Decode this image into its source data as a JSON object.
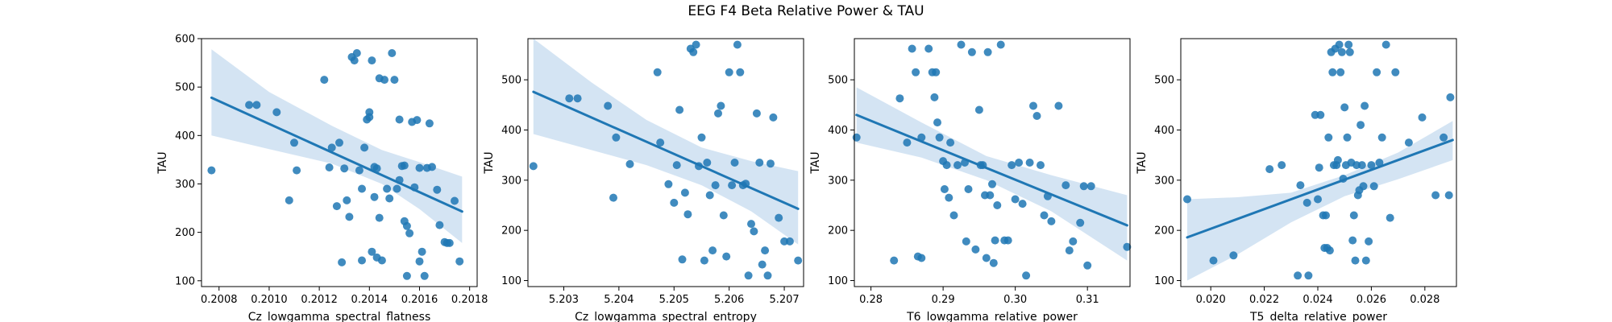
{
  "figure": {
    "title": "EEG F4 Beta Relative Power & TAU"
  },
  "colors": {
    "points": "#1f77b4",
    "line": "#1f77b4",
    "band": "#c6dbef",
    "axes": "#000000"
  },
  "chart_data": [
    {
      "type": "scatter",
      "xlabel": "Cz_lowgamma_spectral_flatness",
      "ylabel": "TAU",
      "xlim": [
        0.20073,
        0.20183
      ],
      "ylim": [
        88,
        600
      ],
      "xticks": [
        0.2008,
        0.201,
        0.2012,
        0.2014,
        0.2016,
        0.2018
      ],
      "xtick_labels": [
        "0.2008",
        "0.2010",
        "0.2012",
        "0.2014",
        "0.2016",
        "0.2018"
      ],
      "yticks": [
        100,
        200,
        300,
        400,
        500,
        600
      ],
      "regression": {
        "x": [
          0.20077,
          0.20177
        ],
        "y": [
          478,
          243
        ]
      },
      "ci_band": {
        "x": [
          0.20077,
          0.201,
          0.20125,
          0.20145,
          0.2016,
          0.20177
        ],
        "upper": [
          578,
          490,
          420,
          370,
          345,
          315
        ],
        "lower": [
          400,
          372,
          342,
          300,
          248,
          178
        ]
      },
      "x": [
        0.20077,
        0.20092,
        0.20095,
        0.20103,
        0.20108,
        0.2011,
        0.20111,
        0.20122,
        0.20124,
        0.20125,
        0.20127,
        0.20128,
        0.20129,
        0.2013,
        0.20131,
        0.20132,
        0.20133,
        0.20134,
        0.20135,
        0.20136,
        0.20137,
        0.20137,
        0.20138,
        0.20139,
        0.2014,
        0.2014,
        0.20141,
        0.20141,
        0.20142,
        0.20142,
        0.20143,
        0.20143,
        0.20144,
        0.20144,
        0.20145,
        0.20146,
        0.20147,
        0.20148,
        0.20149,
        0.2015,
        0.20151,
        0.20152,
        0.20152,
        0.20153,
        0.20154,
        0.20154,
        0.20155,
        0.20155,
        0.20156,
        0.20157,
        0.20158,
        0.20159,
        0.2016,
        0.2016,
        0.20161,
        0.20162,
        0.20163,
        0.20164,
        0.20165,
        0.20167,
        0.20168,
        0.2017,
        0.20171,
        0.20172,
        0.20174,
        0.20176
      ],
      "y": [
        328,
        463,
        463,
        448,
        266,
        385,
        328,
        515,
        334,
        375,
        254,
        385,
        138,
        332,
        266,
        232,
        562,
        555,
        570,
        328,
        142,
        290,
        375,
        433,
        448,
        438,
        160,
        555,
        335,
        273,
        332,
        148,
        518,
        230,
        142,
        515,
        290,
        270,
        570,
        515,
        290,
        308,
        433,
        337,
        338,
        223,
        110,
        213,
        198,
        428,
        293,
        432,
        140,
        333,
        160,
        110,
        333,
        425,
        335,
        288,
        215,
        180,
        178,
        178,
        265,
        140
      ]
    },
    {
      "type": "scatter",
      "xlabel": "Cz_lowgamma_spectral_entropy",
      "ylabel": "TAU",
      "xlim": [
        5.20235,
        5.20735
      ],
      "ylim": [
        88,
        582
      ],
      "xticks": [
        5.203,
        5.204,
        5.205,
        5.206,
        5.207
      ],
      "xtick_labels": [
        "5.203",
        "5.204",
        "5.205",
        "5.206",
        "5.207"
      ],
      "yticks": [
        100,
        200,
        300,
        400,
        500
      ],
      "regression": {
        "x": [
          5.20245,
          5.20725
        ],
        "y": [
          476,
          243
        ]
      },
      "ci_band": {
        "x": [
          5.20245,
          5.2035,
          5.2045,
          5.2055,
          5.2064,
          5.20725
        ],
        "upper": [
          582,
          495,
          420,
          365,
          338,
          318
        ],
        "lower": [
          392,
          360,
          330,
          290,
          238,
          172
        ]
      },
      "x": [
        5.20245,
        5.2031,
        5.20325,
        5.2038,
        5.2039,
        5.20395,
        5.2042,
        5.2047,
        5.20475,
        5.2049,
        5.205,
        5.20505,
        5.2051,
        5.20515,
        5.2052,
        5.20525,
        5.2053,
        5.20535,
        5.2054,
        5.20545,
        5.2055,
        5.20555,
        5.2056,
        5.20565,
        5.2057,
        5.20575,
        5.2058,
        5.20585,
        5.2059,
        5.20595,
        5.206,
        5.20605,
        5.2061,
        5.20615,
        5.2062,
        5.20625,
        5.2063,
        5.20635,
        5.2064,
        5.20645,
        5.2065,
        5.20655,
        5.2066,
        5.20665,
        5.2067,
        5.20675,
        5.2068,
        5.2069,
        5.207,
        5.2071,
        5.20725
      ],
      "y": [
        328,
        463,
        463,
        448,
        265,
        385,
        332,
        515,
        375,
        292,
        255,
        330,
        440,
        142,
        275,
        232,
        562,
        555,
        570,
        328,
        385,
        140,
        335,
        270,
        160,
        290,
        433,
        448,
        230,
        148,
        515,
        290,
        335,
        570,
        515,
        290,
        293,
        110,
        213,
        198,
        433,
        335,
        132,
        160,
        110,
        333,
        425,
        225,
        178,
        178,
        140
      ]
    },
    {
      "type": "scatter",
      "xlabel": "T6_lowgamma_relative_power",
      "ylabel": "TAU",
      "xlim": [
        0.2777,
        0.3159
      ],
      "ylim": [
        88,
        582
      ],
      "xticks": [
        0.28,
        0.29,
        0.3,
        0.31
      ],
      "xtick_labels": [
        "0.28",
        "0.29",
        "0.30",
        "0.31"
      ],
      "yticks": [
        100,
        200,
        300,
        400,
        500
      ],
      "regression": {
        "x": [
          0.278,
          0.3155
        ],
        "y": [
          430,
          210
        ]
      },
      "ci_band": {
        "x": [
          0.278,
          0.287,
          0.296,
          0.305,
          0.3155
        ],
        "upper": [
          485,
          415,
          348,
          310,
          270
        ],
        "lower": [
          375,
          345,
          300,
          238,
          140
        ]
      },
      "x": [
        0.278,
        0.2832,
        0.284,
        0.285,
        0.2857,
        0.2862,
        0.2865,
        0.287,
        0.287,
        0.288,
        0.2885,
        0.2888,
        0.289,
        0.2892,
        0.2895,
        0.29,
        0.2902,
        0.2905,
        0.2908,
        0.291,
        0.2915,
        0.292,
        0.2925,
        0.293,
        0.2932,
        0.2935,
        0.294,
        0.2945,
        0.295,
        0.2952,
        0.2955,
        0.2958,
        0.296,
        0.2962,
        0.2965,
        0.2968,
        0.297,
        0.2972,
        0.2975,
        0.298,
        0.2985,
        0.299,
        0.2995,
        0.3,
        0.3005,
        0.301,
        0.3015,
        0.302,
        0.3025,
        0.303,
        0.3035,
        0.304,
        0.3045,
        0.305,
        0.306,
        0.307,
        0.3075,
        0.308,
        0.309,
        0.3095,
        0.31,
        0.3105,
        0.3155
      ],
      "y": [
        385,
        140,
        463,
        375,
        562,
        515,
        148,
        145,
        385,
        562,
        515,
        465,
        515,
        415,
        385,
        338,
        282,
        330,
        265,
        375,
        230,
        330,
        570,
        335,
        178,
        282,
        555,
        162,
        440,
        330,
        330,
        270,
        145,
        555,
        270,
        292,
        135,
        180,
        250,
        570,
        180,
        180,
        330,
        262,
        335,
        253,
        110,
        335,
        448,
        428,
        330,
        230,
        268,
        218,
        448,
        290,
        160,
        178,
        215,
        288,
        130,
        288,
        167
      ]
    },
    {
      "type": "scatter",
      "xlabel": "T5_delta_relative_power",
      "ylabel": "TAU",
      "xlim": [
        0.01888,
        0.02918
      ],
      "ylim": [
        88,
        582
      ],
      "xticks": [
        0.02,
        0.022,
        0.024,
        0.026,
        0.028
      ],
      "xtick_labels": [
        "0.020",
        "0.022",
        "0.024",
        "0.026",
        "0.028"
      ],
      "yticks": [
        100,
        200,
        300,
        400,
        500
      ],
      "regression": {
        "x": [
          0.01912,
          0.02904
        ],
        "y": [
          186,
          380
        ]
      },
      "ci_band": {
        "x": [
          0.01912,
          0.021,
          0.023,
          0.025,
          0.027,
          0.02904
        ],
        "upper": [
          262,
          266,
          275,
          310,
          355,
          418
        ],
        "lower": [
          100,
          152,
          216,
          268,
          302,
          340
        ]
      },
      "x": [
        0.01912,
        0.0201,
        0.02085,
        0.0222,
        0.02265,
        0.02325,
        0.02335,
        0.0236,
        0.02365,
        0.0239,
        0.024,
        0.02405,
        0.0241,
        0.0242,
        0.02425,
        0.0243,
        0.02435,
        0.0244,
        0.02445,
        0.0245,
        0.02455,
        0.0246,
        0.02465,
        0.0247,
        0.02475,
        0.0248,
        0.02485,
        0.0249,
        0.02495,
        0.025,
        0.02505,
        0.0251,
        0.02515,
        0.0252,
        0.02525,
        0.0253,
        0.02535,
        0.0254,
        0.02545,
        0.0255,
        0.02555,
        0.0256,
        0.02565,
        0.0257,
        0.02575,
        0.0258,
        0.0259,
        0.026,
        0.0261,
        0.0262,
        0.0263,
        0.0264,
        0.02655,
        0.0267,
        0.0269,
        0.0274,
        0.0279,
        0.0284,
        0.0287,
        0.0289,
        0.02895
      ],
      "y": [
        262,
        140,
        150,
        322,
        330,
        110,
        290,
        255,
        110,
        430,
        262,
        325,
        430,
        230,
        165,
        230,
        165,
        385,
        160,
        555,
        515,
        330,
        562,
        330,
        340,
        570,
        515,
        555,
        303,
        445,
        330,
        385,
        570,
        555,
        335,
        180,
        230,
        140,
        330,
        270,
        280,
        410,
        330,
        288,
        448,
        140,
        178,
        330,
        288,
        515,
        335,
        385,
        570,
        225,
        515,
        375,
        425,
        270,
        385,
        270,
        465
      ]
    }
  ]
}
